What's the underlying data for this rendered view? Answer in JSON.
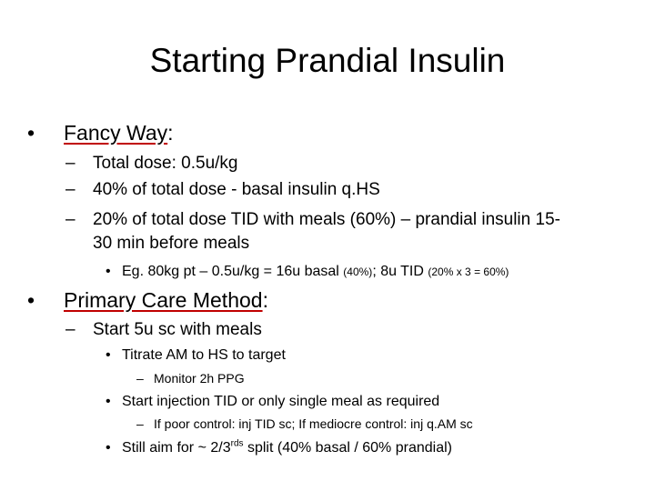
{
  "slide": {
    "title": "Starting Prandial Insulin",
    "sections": [
      {
        "heading": "Fancy Way",
        "heading_suffix": ":",
        "items": [
          "Total dose: 0.5u/kg",
          "40% of total dose - basal insulin q.HS",
          "20% of total dose TID with meals (60%) – prandial insulin 15-",
          "30 min before meals"
        ],
        "example": {
          "a": "Eg. 80kg pt – 0.5u/kg = 16u basal ",
          "a_small": "(40%)",
          "b": "; 8u TID ",
          "b_small": "(20% x 3 = 60%)"
        }
      },
      {
        "heading": "Primary Care Method",
        "heading_suffix": ":",
        "start": "Start 5u sc with meals",
        "titrate": "Titrate AM to HS to target",
        "monitor": "Monitor 2h PPG",
        "injection": "Start injection TID or only single meal as required",
        "control": "If poor control: inj TID sc;   If mediocre control: inj q.AM sc",
        "split_pre": "Still aim for ~ 2/3",
        "split_sup": "rds",
        "split_post": " split (40% basal / 60% prandial)"
      }
    ],
    "glyphs": {
      "bullet": "•",
      "dash": "–"
    }
  }
}
